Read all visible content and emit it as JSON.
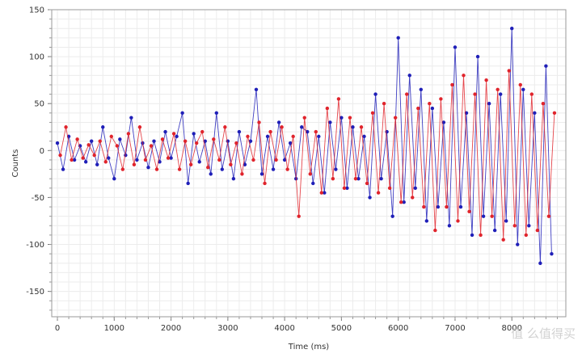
{
  "chart_data": {
    "type": "line",
    "xlabel": "Time (ms)",
    "ylabel": "Counts",
    "xlim": [
      -100,
      8950
    ],
    "ylim": [
      -177,
      150
    ],
    "x_ticks": [
      0,
      1000,
      2000,
      3000,
      4000,
      5000,
      6000,
      7000,
      8000
    ],
    "y_ticks": [
      150,
      100,
      50,
      0,
      -50,
      -100,
      -150
    ],
    "grid": true,
    "legend": "none",
    "series": [
      {
        "color": "#1f1fb8",
        "marker": "circle",
        "x": [
          0,
          100,
          200,
          300,
          400,
          500,
          600,
          700,
          800,
          900,
          1000,
          1100,
          1200,
          1300,
          1400,
          1500,
          1600,
          1700,
          1800,
          1900,
          2000,
          2100,
          2200,
          2300,
          2400,
          2500,
          2600,
          2700,
          2800,
          2900,
          3000,
          3100,
          3200,
          3300,
          3400,
          3500,
          3600,
          3700,
          3800,
          3900,
          4000,
          4100,
          4200,
          4300,
          4400,
          4500,
          4600,
          4700,
          4800,
          4900,
          5000,
          5100,
          5200,
          5300,
          5400,
          5500,
          5600,
          5700,
          5800,
          5900,
          6000,
          6100,
          6200,
          6300,
          6400,
          6500,
          6600,
          6700,
          6800,
          6900,
          7000,
          7100,
          7200,
          7300,
          7400,
          7500,
          7600,
          7700,
          7800,
          7900,
          8000,
          8100,
          8200,
          8300,
          8400,
          8500,
          8600,
          8700
        ],
        "values": [
          8,
          -20,
          15,
          -10,
          5,
          -12,
          10,
          -15,
          25,
          -8,
          -30,
          12,
          -5,
          35,
          -10,
          8,
          -18,
          10,
          -12,
          20,
          -8,
          15,
          40,
          -35,
          18,
          -12,
          10,
          -25,
          40,
          -20,
          10,
          -30,
          20,
          -15,
          10,
          65,
          -25,
          15,
          -20,
          30,
          -10,
          8,
          -30,
          25,
          20,
          -35,
          15,
          -45,
          30,
          -20,
          35,
          -40,
          25,
          -30,
          15,
          -50,
          60,
          -30,
          20,
          -70,
          120,
          -55,
          80,
          -40,
          65,
          -75,
          45,
          -60,
          30,
          -80,
          110,
          -60,
          40,
          -90,
          100,
          -70,
          50,
          -85,
          60,
          -75,
          130,
          -100,
          65,
          -80,
          40,
          -120,
          90,
          -110
        ]
      },
      {
        "color": "#e0242c",
        "marker": "circle",
        "x": [
          50,
          150,
          250,
          350,
          450,
          550,
          650,
          750,
          850,
          950,
          1050,
          1150,
          1250,
          1350,
          1450,
          1550,
          1650,
          1750,
          1850,
          1950,
          2050,
          2150,
          2250,
          2350,
          2450,
          2550,
          2650,
          2750,
          2850,
          2950,
          3050,
          3150,
          3250,
          3350,
          3450,
          3550,
          3650,
          3750,
          3850,
          3950,
          4050,
          4150,
          4250,
          4350,
          4450,
          4550,
          4650,
          4750,
          4850,
          4950,
          5050,
          5150,
          5250,
          5350,
          5450,
          5550,
          5650,
          5750,
          5850,
          5950,
          6050,
          6150,
          6250,
          6350,
          6450,
          6550,
          6650,
          6750,
          6850,
          6950,
          7050,
          7150,
          7250,
          7350,
          7450,
          7550,
          7650,
          7750,
          7850,
          7950,
          8050,
          8150,
          8250,
          8350,
          8450,
          8550,
          8650,
          8750
        ],
        "values": [
          -5,
          25,
          -10,
          12,
          -8,
          6,
          -5,
          10,
          -12,
          15,
          5,
          -20,
          18,
          -15,
          25,
          -10,
          5,
          -20,
          12,
          -8,
          18,
          -20,
          10,
          -15,
          8,
          20,
          -18,
          12,
          -10,
          25,
          -15,
          8,
          -25,
          15,
          -10,
          30,
          -35,
          20,
          -10,
          25,
          -20,
          15,
          -70,
          35,
          -25,
          20,
          -45,
          45,
          -30,
          55,
          -40,
          35,
          -30,
          25,
          -35,
          40,
          -45,
          50,
          -40,
          35,
          -55,
          60,
          -50,
          45,
          -60,
          50,
          -85,
          55,
          -60,
          70,
          -75,
          80,
          -65,
          60,
          -90,
          75,
          -70,
          65,
          -95,
          85,
          -80,
          70,
          -90,
          60,
          -85,
          50,
          -70,
          40
        ]
      }
    ]
  },
  "watermark": "值 么值得买"
}
